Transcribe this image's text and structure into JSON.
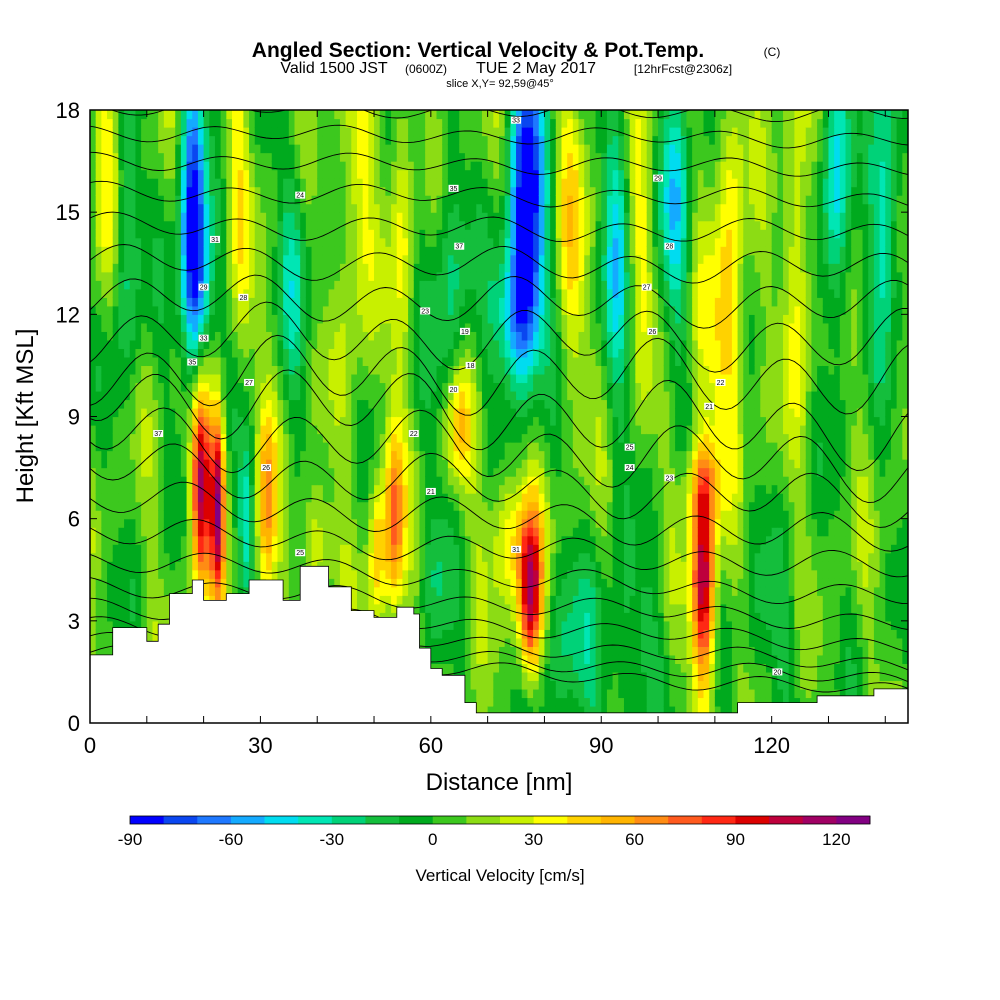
{
  "chart_data": {
    "type": "heatmap",
    "title": "Angled Section: Vertical Velocity & Pot.Temp.",
    "title_unit": "(C)",
    "subtitle": {
      "valid": "Valid 1500 JST",
      "utc": "(0600Z)",
      "date": "TUE 2 May 2017",
      "forecast": "[12hrFcst@2306z]"
    },
    "slice_label": "slice X,Y= 92,59@45°",
    "xlabel": "Distance [nm]",
    "ylabel": "Height [Kft MSL]",
    "xlim": [
      0,
      144
    ],
    "ylim": [
      0,
      18
    ],
    "xticks": [
      "0",
      "30",
      "60",
      "90",
      "120"
    ],
    "yticks": [
      "0",
      "3",
      "6",
      "9",
      "12",
      "15",
      "18"
    ],
    "colorbar": {
      "label": "Vertical Velocity [cm/s]",
      "min": -90,
      "max": 130,
      "step": 10,
      "tick_values": [
        "-90",
        "-60",
        "-30",
        "0",
        "30",
        "60",
        "90",
        "120"
      ],
      "colors": [
        "#0000ff",
        "#0a46f0",
        "#1e78ff",
        "#14aaff",
        "#00dcf0",
        "#00e6b4",
        "#00d278",
        "#14be3c",
        "#00aa1e",
        "#3cc81e",
        "#8cdc14",
        "#c8f000",
        "#ffff00",
        "#ffd200",
        "#ffb400",
        "#ff8c14",
        "#ff5a1e",
        "#ff2814",
        "#dc0000",
        "#be003c",
        "#a00064",
        "#820082"
      ]
    },
    "terrain_kft": [
      [
        0,
        2.0
      ],
      [
        4,
        2.8
      ],
      [
        10,
        2.4
      ],
      [
        12,
        2.9
      ],
      [
        14,
        3.8
      ],
      [
        18,
        4.2
      ],
      [
        20,
        3.6
      ],
      [
        24,
        3.8
      ],
      [
        28,
        4.2
      ],
      [
        34,
        3.6
      ],
      [
        37,
        4.6
      ],
      [
        42,
        4.0
      ],
      [
        46,
        3.3
      ],
      [
        50,
        3.1
      ],
      [
        54,
        3.4
      ],
      [
        57,
        3.2
      ],
      [
        58,
        2.2
      ],
      [
        60,
        1.6
      ],
      [
        62,
        1.4
      ],
      [
        66,
        0.6
      ],
      [
        68,
        0.3
      ],
      [
        80,
        0.3
      ],
      [
        110,
        0.3
      ],
      [
        114,
        0.6
      ],
      [
        128,
        0.8
      ],
      [
        138,
        1.0
      ],
      [
        144,
        1.3
      ]
    ],
    "velocity_features": [
      {
        "x": 19.5,
        "z": 7.0,
        "w": 110,
        "sx": 1.2,
        "sz": 2.2
      },
      {
        "x": 22.5,
        "z": 6.5,
        "w": 100,
        "sx": 0.9,
        "sz": 2.0
      },
      {
        "x": 31,
        "z": 6.3,
        "w": 55,
        "sx": 1.2,
        "sz": 2.3
      },
      {
        "x": 27.5,
        "z": 6.0,
        "w": -45,
        "sx": 1.0,
        "sz": 1.7
      },
      {
        "x": 40,
        "z": 5.3,
        "w": 30,
        "sx": 2.0,
        "sz": 1.2
      },
      {
        "x": 53.5,
        "z": 6.0,
        "w": 70,
        "sx": 1.2,
        "sz": 2.0
      },
      {
        "x": 50.5,
        "z": 5.0,
        "w": 40,
        "sx": 1.0,
        "sz": 1.5
      },
      {
        "x": 65,
        "z": 8.7,
        "w": 40,
        "sx": 1.5,
        "sz": 1.2
      },
      {
        "x": 77.5,
        "z": 3.6,
        "w": 110,
        "sx": 1.5,
        "sz": 1.8
      },
      {
        "x": 74,
        "z": 5.5,
        "w": 35,
        "sx": 3.0,
        "sz": 1.4
      },
      {
        "x": 108,
        "z": 4.0,
        "w": 105,
        "sx": 1.5,
        "sz": 2.2
      },
      {
        "x": 108,
        "z": 7.0,
        "w": 40,
        "sx": 2.2,
        "sz": 1.0
      },
      {
        "x": 18,
        "z": 15.5,
        "w": -80,
        "sx": 1.6,
        "sz": 2.8
      },
      {
        "x": 19,
        "z": 12.5,
        "w": -55,
        "sx": 2.0,
        "sz": 1.8
      },
      {
        "x": 77,
        "z": 15.5,
        "w": -95,
        "sx": 2.2,
        "sz": 3.2
      },
      {
        "x": 75,
        "z": 12.0,
        "w": -60,
        "sx": 2.8,
        "sz": 1.5
      },
      {
        "x": 93,
        "z": 14.5,
        "w": -45,
        "sx": 1.8,
        "sz": 3.5
      },
      {
        "x": 103,
        "z": 15.0,
        "w": -45,
        "sx": 2.0,
        "sz": 3.0
      },
      {
        "x": 131,
        "z": 15.5,
        "w": -50,
        "sx": 1.8,
        "sz": 3.0
      },
      {
        "x": 140,
        "z": 15.5,
        "w": -50,
        "sx": 1.8,
        "sz": 3.0
      },
      {
        "x": 3,
        "z": 15.5,
        "w": 30,
        "sx": 1.8,
        "sz": 3.0
      },
      {
        "x": 26,
        "z": 15.5,
        "w": 25,
        "sx": 1.6,
        "sz": 3.0
      },
      {
        "x": 47,
        "z": 15.0,
        "w": 30,
        "sx": 2.0,
        "sz": 3.5
      },
      {
        "x": 55,
        "z": 15.0,
        "w": 25,
        "sx": 1.5,
        "sz": 3.0
      },
      {
        "x": 85,
        "z": 15.0,
        "w": 30,
        "sx": 1.8,
        "sz": 3.5
      },
      {
        "x": 97,
        "z": 15.0,
        "w": 30,
        "sx": 1.5,
        "sz": 3.2
      },
      {
        "x": 113,
        "z": 15.0,
        "w": 30,
        "sx": 1.8,
        "sz": 3.5
      },
      {
        "x": 125,
        "z": 14.0,
        "w": 30,
        "sx": 1.8,
        "sz": 3.5
      },
      {
        "x": 110,
        "z": 11.0,
        "w": 25,
        "sx": 4.0,
        "sz": 2.0
      },
      {
        "x": 6,
        "z": 14.0,
        "w": -35,
        "sx": 2.0,
        "sz": 3.0
      },
      {
        "x": 36,
        "z": 13.5,
        "w": -30,
        "sx": 2.0,
        "sz": 2.5
      },
      {
        "x": 63,
        "z": 13.0,
        "w": -30,
        "sx": 2.5,
        "sz": 2.5
      },
      {
        "x": 83,
        "z": 2.0,
        "w": -22,
        "sx": 6.0,
        "sz": 2.0
      },
      {
        "x": 95,
        "z": 2.0,
        "w": -18,
        "sx": 5.0,
        "sz": 2.0
      },
      {
        "x": 120,
        "z": 2.5,
        "w": -15,
        "sx": 4.0,
        "sz": 2.0
      },
      {
        "x": 61,
        "z": 4.0,
        "w": -18,
        "sx": 2.0,
        "sz": 2.0
      }
    ],
    "isentropes": {
      "count": 24,
      "min_height_kft": 1.5,
      "max_height_kft": 20.0,
      "packing_center_kft": 9.5,
      "label_values": [
        "37",
        "35",
        "33",
        "31",
        "29",
        "28",
        "27",
        "26",
        "25",
        "24",
        "23",
        "22",
        "21",
        "20",
        "19",
        "18"
      ],
      "label_positions": [
        [
          12,
          8.5
        ],
        [
          18,
          10.6
        ],
        [
          20,
          11.3
        ],
        [
          22,
          14.2
        ],
        [
          20,
          12.8
        ],
        [
          27,
          12.5
        ],
        [
          28,
          10.0
        ],
        [
          31,
          7.5
        ],
        [
          37,
          5.0
        ],
        [
          37,
          15.5
        ],
        [
          59,
          12.1
        ],
        [
          57,
          8.5
        ],
        [
          60,
          6.8
        ],
        [
          64,
          9.8
        ],
        [
          66,
          11.5
        ],
        [
          67,
          10.5
        ],
        [
          65,
          14.0
        ],
        [
          64,
          15.7
        ],
        [
          75,
          17.7
        ],
        [
          75,
          5.1
        ],
        [
          100,
          16.0
        ],
        [
          102,
          14.0
        ],
        [
          98,
          12.8
        ],
        [
          99,
          11.5
        ],
        [
          95,
          8.1
        ],
        [
          95,
          7.5
        ],
        [
          102,
          7.2
        ],
        [
          111,
          10.0
        ],
        [
          109,
          9.3
        ],
        [
          121,
          1.5
        ]
      ]
    }
  }
}
